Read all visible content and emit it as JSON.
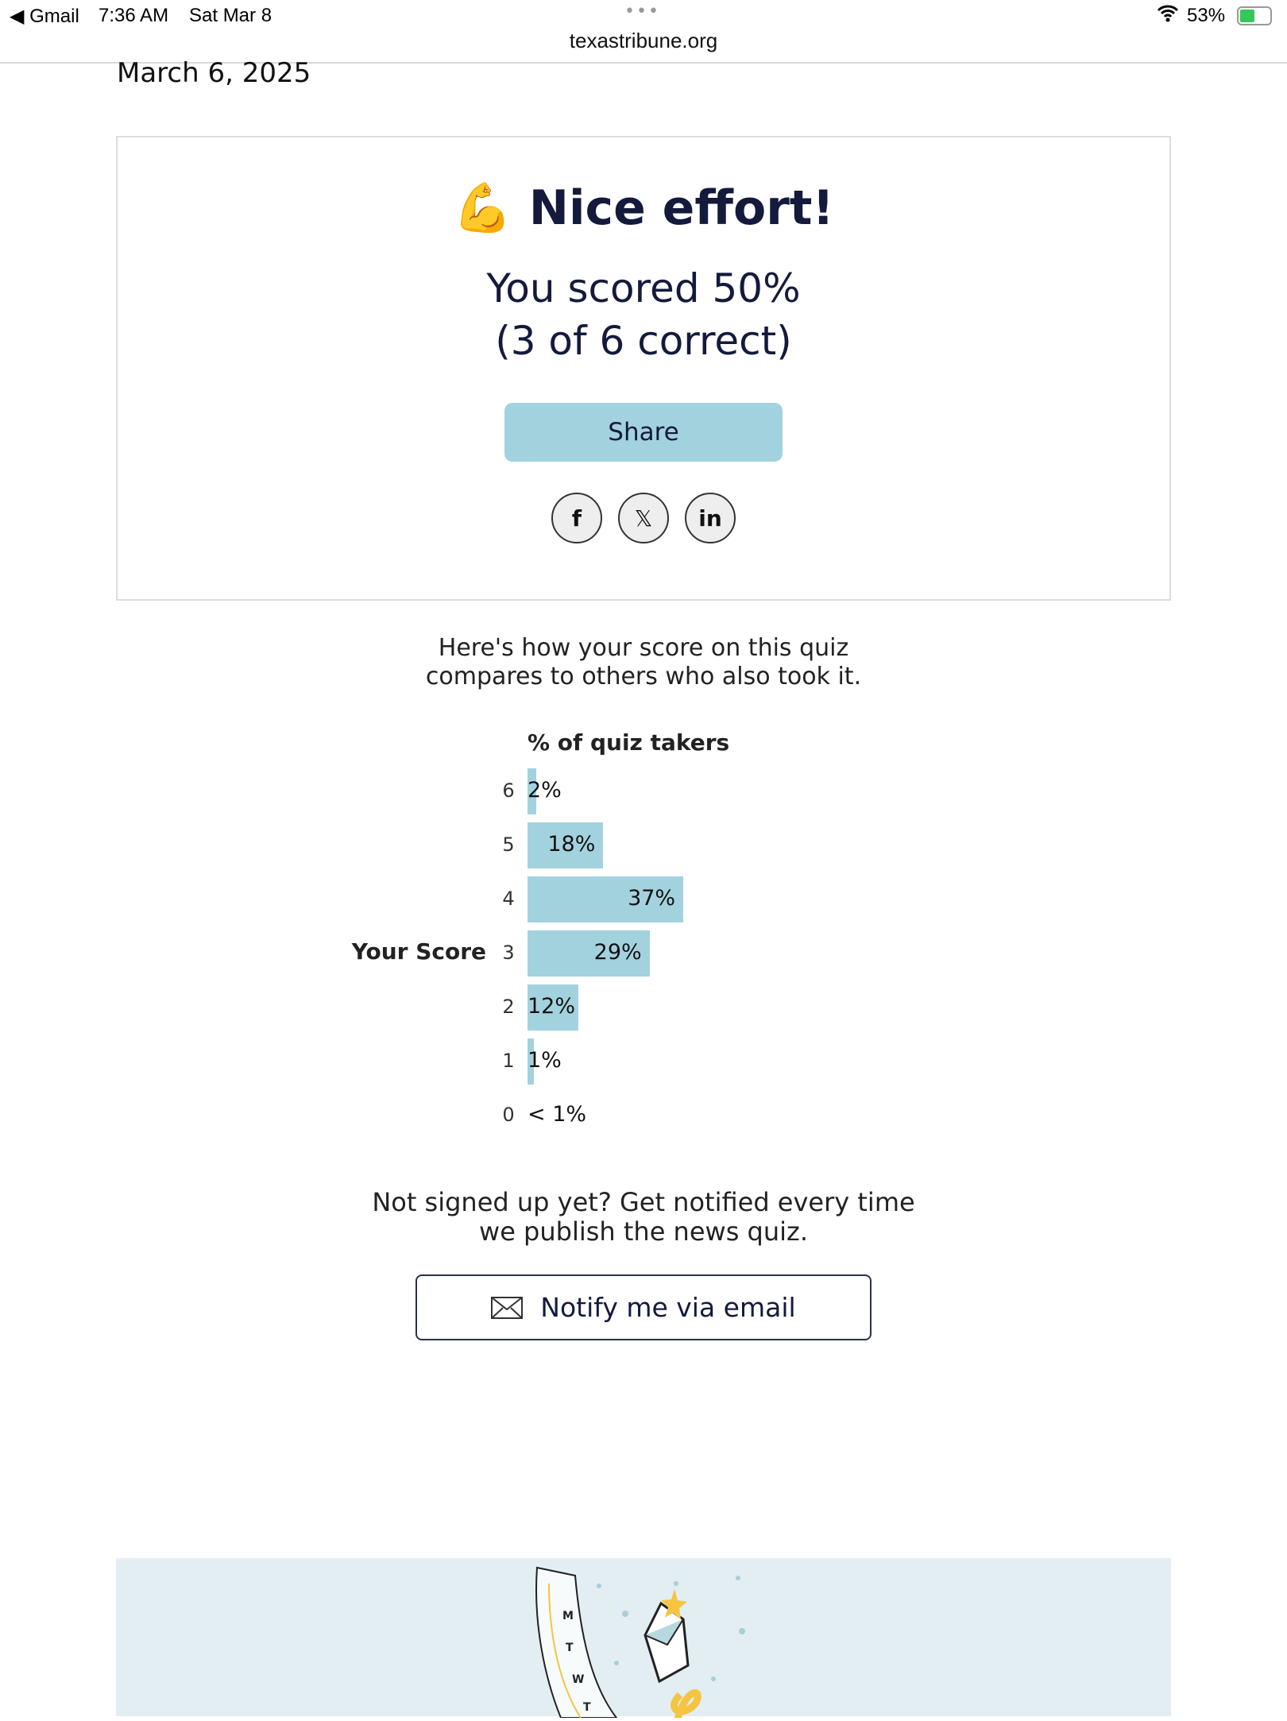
{
  "status_bar": {
    "back_app": "Gmail",
    "time": "7:36 AM",
    "date": "Sat Mar 8",
    "battery": "53%",
    "url": "texastribune.org"
  },
  "page": {
    "date": "March 6, 2025"
  },
  "result": {
    "emoji": "💪",
    "title": "Nice effort!",
    "score_line1": "You scored 50%",
    "score_line2": "(3 of 6 correct)",
    "share_label": "Share",
    "social": [
      "facebook",
      "x",
      "linkedin"
    ]
  },
  "compare": {
    "line1": "Here's how your score on this quiz",
    "line2": "compares to others who also took it."
  },
  "chart_data": {
    "type": "bar",
    "orientation": "horizontal",
    "title": "% of quiz takers",
    "your_score_label": "Your Score",
    "your_score": 3,
    "categories": [
      "6",
      "5",
      "4",
      "3",
      "2",
      "1",
      "0"
    ],
    "values": [
      2,
      18,
      37,
      29,
      12,
      1,
      0.5
    ],
    "labels": [
      "2%",
      "18%",
      "37%",
      "29%",
      "12%",
      "1%",
      "< 1%"
    ],
    "color": "#a3d2df"
  },
  "signup": {
    "line1": "Not signed up yet? Get notified every time",
    "line2": "we publish the news quiz.",
    "button_label": "Notify me via email"
  },
  "footer": {
    "calendar_days": [
      "M",
      "T",
      "W",
      "T"
    ]
  }
}
